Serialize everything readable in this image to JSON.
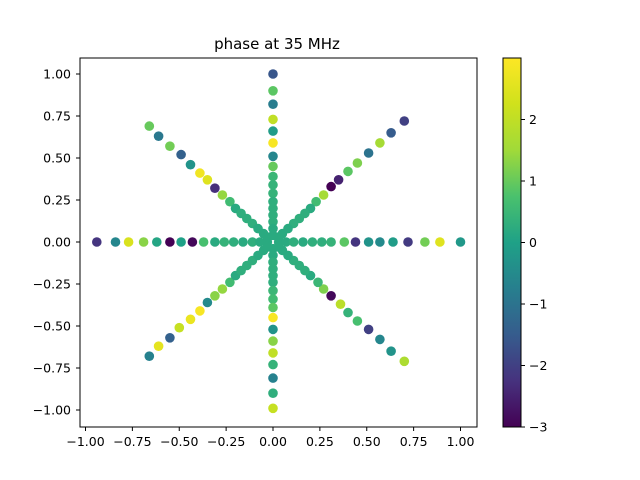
{
  "chart_data": {
    "type": "scatter",
    "title": "phase at 35 MHz",
    "xlabel": "",
    "ylabel": "",
    "xlim": [
      -1.0,
      1.0
    ],
    "ylim": [
      -1.0,
      1.0
    ],
    "x_ticks": [
      "−1.00",
      "−0.75",
      "−0.50",
      "−0.25",
      "0.00",
      "0.25",
      "0.50",
      "0.75",
      "1.00"
    ],
    "y_ticks": [
      "1.00",
      "0.75",
      "0.50",
      "0.25",
      "0.00",
      "−0.25",
      "−0.50",
      "−0.75",
      "−1.00"
    ],
    "grid": false,
    "colormap": "viridis",
    "colorbar": {
      "range": [
        -3,
        3
      ],
      "ticks": [
        "2",
        "1",
        "0",
        "−1",
        "−2",
        "−3"
      ]
    },
    "points": [
      {
        "x": -0.94,
        "y": 0.0,
        "value": -2.2
      },
      {
        "x": -0.84,
        "y": 0.0,
        "value": -0.6
      },
      {
        "x": -0.77,
        "y": 0.0,
        "value": 2.4
      },
      {
        "x": -0.69,
        "y": 0.0,
        "value": 1.3
      },
      {
        "x": -0.62,
        "y": 0.0,
        "value": 0.1
      },
      {
        "x": -0.55,
        "y": 0.0,
        "value": -3.0
      },
      {
        "x": -0.49,
        "y": 0.0,
        "value": 0.0
      },
      {
        "x": -0.43,
        "y": 0.0,
        "value": -2.9
      },
      {
        "x": -0.37,
        "y": 0.0,
        "value": 0.7
      },
      {
        "x": -0.31,
        "y": 0.0,
        "value": 0.2
      },
      {
        "x": -0.26,
        "y": 0.0,
        "value": 0.4
      },
      {
        "x": -0.21,
        "y": 0.0,
        "value": 0.3
      },
      {
        "x": -0.16,
        "y": 0.0,
        "value": 0.2
      },
      {
        "x": -0.11,
        "y": 0.0,
        "value": 0.3
      },
      {
        "x": -0.07,
        "y": 0.0,
        "value": 0.2
      },
      {
        "x": -0.03,
        "y": 0.0,
        "value": 0.2
      },
      {
        "x": 0.03,
        "y": 0.0,
        "value": 0.2
      },
      {
        "x": 0.07,
        "y": 0.0,
        "value": 0.2
      },
      {
        "x": 0.11,
        "y": 0.0,
        "value": 0.3
      },
      {
        "x": 0.16,
        "y": 0.0,
        "value": 0.2
      },
      {
        "x": 0.21,
        "y": 0.0,
        "value": 0.3
      },
      {
        "x": 0.26,
        "y": 0.0,
        "value": 0.3
      },
      {
        "x": 0.31,
        "y": 0.0,
        "value": 0.4
      },
      {
        "x": 0.38,
        "y": 0.0,
        "value": 0.9
      },
      {
        "x": 0.44,
        "y": 0.0,
        "value": -2.2
      },
      {
        "x": 0.51,
        "y": 0.0,
        "value": -0.3
      },
      {
        "x": 0.57,
        "y": 0.0,
        "value": -0.5
      },
      {
        "x": 0.64,
        "y": 0.0,
        "value": -0.1
      },
      {
        "x": 0.72,
        "y": 0.0,
        "value": -2.1
      },
      {
        "x": 0.81,
        "y": 0.0,
        "value": 1.1
      },
      {
        "x": 0.89,
        "y": 0.0,
        "value": 2.5
      },
      {
        "x": 1.0,
        "y": 0.0,
        "value": -0.2
      },
      {
        "x": 0.0,
        "y": 1.0,
        "value": -1.6
      },
      {
        "x": 0.0,
        "y": 0.9,
        "value": 0.9
      },
      {
        "x": 0.0,
        "y": 0.82,
        "value": -0.8
      },
      {
        "x": 0.0,
        "y": 0.73,
        "value": 2.0
      },
      {
        "x": 0.0,
        "y": 0.66,
        "value": -0.1
      },
      {
        "x": 0.0,
        "y": 0.59,
        "value": 2.9
      },
      {
        "x": 0.0,
        "y": 0.51,
        "value": -0.6
      },
      {
        "x": 0.0,
        "y": 0.45,
        "value": 1.0
      },
      {
        "x": 0.0,
        "y": 0.39,
        "value": 0.5
      },
      {
        "x": 0.0,
        "y": 0.34,
        "value": 0.4
      },
      {
        "x": 0.0,
        "y": 0.29,
        "value": 0.4
      },
      {
        "x": 0.0,
        "y": 0.24,
        "value": 0.3
      },
      {
        "x": 0.0,
        "y": 0.2,
        "value": 0.3
      },
      {
        "x": 0.0,
        "y": 0.16,
        "value": 0.3
      },
      {
        "x": 0.0,
        "y": 0.12,
        "value": 0.3
      },
      {
        "x": 0.0,
        "y": 0.08,
        "value": 0.2
      },
      {
        "x": 0.0,
        "y": 0.04,
        "value": 0.2
      },
      {
        "x": 0.0,
        "y": -0.04,
        "value": 0.2
      },
      {
        "x": 0.0,
        "y": -0.08,
        "value": 0.2
      },
      {
        "x": 0.0,
        "y": -0.12,
        "value": 0.3
      },
      {
        "x": 0.0,
        "y": -0.16,
        "value": 0.3
      },
      {
        "x": 0.0,
        "y": -0.2,
        "value": 0.3
      },
      {
        "x": 0.0,
        "y": -0.24,
        "value": 0.3
      },
      {
        "x": 0.0,
        "y": -0.29,
        "value": 0.5
      },
      {
        "x": 0.0,
        "y": -0.34,
        "value": 0.6
      },
      {
        "x": 0.0,
        "y": -0.39,
        "value": 0.9
      },
      {
        "x": 0.0,
        "y": -0.45,
        "value": 2.9
      },
      {
        "x": 0.0,
        "y": -0.52,
        "value": -0.3
      },
      {
        "x": 0.0,
        "y": -0.59,
        "value": 1.3
      },
      {
        "x": 0.0,
        "y": -0.66,
        "value": 2.0
      },
      {
        "x": 0.0,
        "y": -0.73,
        "value": 0.4
      },
      {
        "x": 0.0,
        "y": -0.81,
        "value": -0.7
      },
      {
        "x": 0.0,
        "y": -0.9,
        "value": 0.3
      },
      {
        "x": 0.0,
        "y": -0.99,
        "value": 2.1
      },
      {
        "x": 0.7,
        "y": 0.72,
        "value": -2.0
      },
      {
        "x": 0.63,
        "y": 0.65,
        "value": -1.5
      },
      {
        "x": 0.57,
        "y": 0.59,
        "value": 1.6
      },
      {
        "x": 0.51,
        "y": 0.53,
        "value": -1.0
      },
      {
        "x": 0.45,
        "y": 0.47,
        "value": 1.2
      },
      {
        "x": 0.4,
        "y": 0.42,
        "value": 0.9
      },
      {
        "x": 0.35,
        "y": 0.37,
        "value": -2.5
      },
      {
        "x": 0.31,
        "y": 0.33,
        "value": -3.0
      },
      {
        "x": 0.27,
        "y": 0.28,
        "value": 1.6
      },
      {
        "x": 0.23,
        "y": 0.24,
        "value": 0.6
      },
      {
        "x": 0.2,
        "y": 0.2,
        "value": 0.2
      },
      {
        "x": 0.17,
        "y": 0.17,
        "value": 0.3
      },
      {
        "x": 0.14,
        "y": 0.14,
        "value": 0.3
      },
      {
        "x": 0.11,
        "y": 0.11,
        "value": 0.3
      },
      {
        "x": 0.08,
        "y": 0.08,
        "value": 0.2
      },
      {
        "x": 0.05,
        "y": 0.05,
        "value": 0.2
      },
      {
        "x": 0.03,
        "y": 0.03,
        "value": 0.2
      },
      {
        "x": -0.66,
        "y": 0.69,
        "value": 1.0
      },
      {
        "x": -0.61,
        "y": 0.63,
        "value": -0.9
      },
      {
        "x": -0.55,
        "y": 0.57,
        "value": 1.1
      },
      {
        "x": -0.49,
        "y": 0.52,
        "value": -1.4
      },
      {
        "x": -0.44,
        "y": 0.46,
        "value": -0.3
      },
      {
        "x": -0.39,
        "y": 0.41,
        "value": 2.8
      },
      {
        "x": -0.35,
        "y": 0.37,
        "value": 2.5
      },
      {
        "x": -0.31,
        "y": 0.32,
        "value": -2.3
      },
      {
        "x": -0.27,
        "y": 0.28,
        "value": 1.4
      },
      {
        "x": -0.23,
        "y": 0.24,
        "value": 0.6
      },
      {
        "x": -0.2,
        "y": 0.2,
        "value": 0.2
      },
      {
        "x": -0.17,
        "y": 0.17,
        "value": 0.3
      },
      {
        "x": -0.14,
        "y": 0.14,
        "value": 0.3
      },
      {
        "x": -0.11,
        "y": 0.11,
        "value": 0.3
      },
      {
        "x": -0.08,
        "y": 0.08,
        "value": 0.2
      },
      {
        "x": -0.05,
        "y": 0.05,
        "value": 0.2
      },
      {
        "x": -0.03,
        "y": 0.03,
        "value": 0.2
      },
      {
        "x": -0.66,
        "y": -0.68,
        "value": -0.7
      },
      {
        "x": -0.61,
        "y": -0.62,
        "value": 2.6
      },
      {
        "x": -0.55,
        "y": -0.57,
        "value": -1.4
      },
      {
        "x": -0.5,
        "y": -0.51,
        "value": 2.1
      },
      {
        "x": -0.44,
        "y": -0.46,
        "value": 2.7
      },
      {
        "x": -0.39,
        "y": -0.41,
        "value": 2.9
      },
      {
        "x": -0.35,
        "y": -0.36,
        "value": -0.5
      },
      {
        "x": -0.31,
        "y": -0.32,
        "value": 1.3
      },
      {
        "x": -0.27,
        "y": -0.28,
        "value": 1.4
      },
      {
        "x": -0.23,
        "y": -0.24,
        "value": 0.6
      },
      {
        "x": -0.2,
        "y": -0.2,
        "value": 0.2
      },
      {
        "x": -0.17,
        "y": -0.17,
        "value": 0.3
      },
      {
        "x": -0.14,
        "y": -0.14,
        "value": 0.3
      },
      {
        "x": -0.11,
        "y": -0.11,
        "value": 0.3
      },
      {
        "x": -0.08,
        "y": -0.08,
        "value": 0.2
      },
      {
        "x": -0.05,
        "y": -0.05,
        "value": 0.2
      },
      {
        "x": -0.03,
        "y": -0.03,
        "value": 0.2
      },
      {
        "x": 0.7,
        "y": -0.71,
        "value": 1.7
      },
      {
        "x": 0.63,
        "y": -0.65,
        "value": -0.3
      },
      {
        "x": 0.57,
        "y": -0.58,
        "value": -0.6
      },
      {
        "x": 0.51,
        "y": -0.52,
        "value": -2.0
      },
      {
        "x": 0.45,
        "y": -0.47,
        "value": 0.7
      },
      {
        "x": 0.4,
        "y": -0.42,
        "value": 0.4
      },
      {
        "x": 0.36,
        "y": -0.37,
        "value": 1.9
      },
      {
        "x": 0.31,
        "y": -0.32,
        "value": -2.9
      },
      {
        "x": 0.27,
        "y": -0.28,
        "value": 1.2
      },
      {
        "x": 0.24,
        "y": -0.24,
        "value": 0.5
      },
      {
        "x": 0.2,
        "y": -0.2,
        "value": 0.2
      },
      {
        "x": 0.17,
        "y": -0.17,
        "value": 0.3
      },
      {
        "x": 0.14,
        "y": -0.14,
        "value": 0.3
      },
      {
        "x": 0.11,
        "y": -0.11,
        "value": 0.3
      },
      {
        "x": 0.08,
        "y": -0.08,
        "value": 0.2
      },
      {
        "x": 0.05,
        "y": -0.05,
        "value": 0.2
      },
      {
        "x": 0.03,
        "y": -0.03,
        "value": 0.2
      }
    ]
  }
}
